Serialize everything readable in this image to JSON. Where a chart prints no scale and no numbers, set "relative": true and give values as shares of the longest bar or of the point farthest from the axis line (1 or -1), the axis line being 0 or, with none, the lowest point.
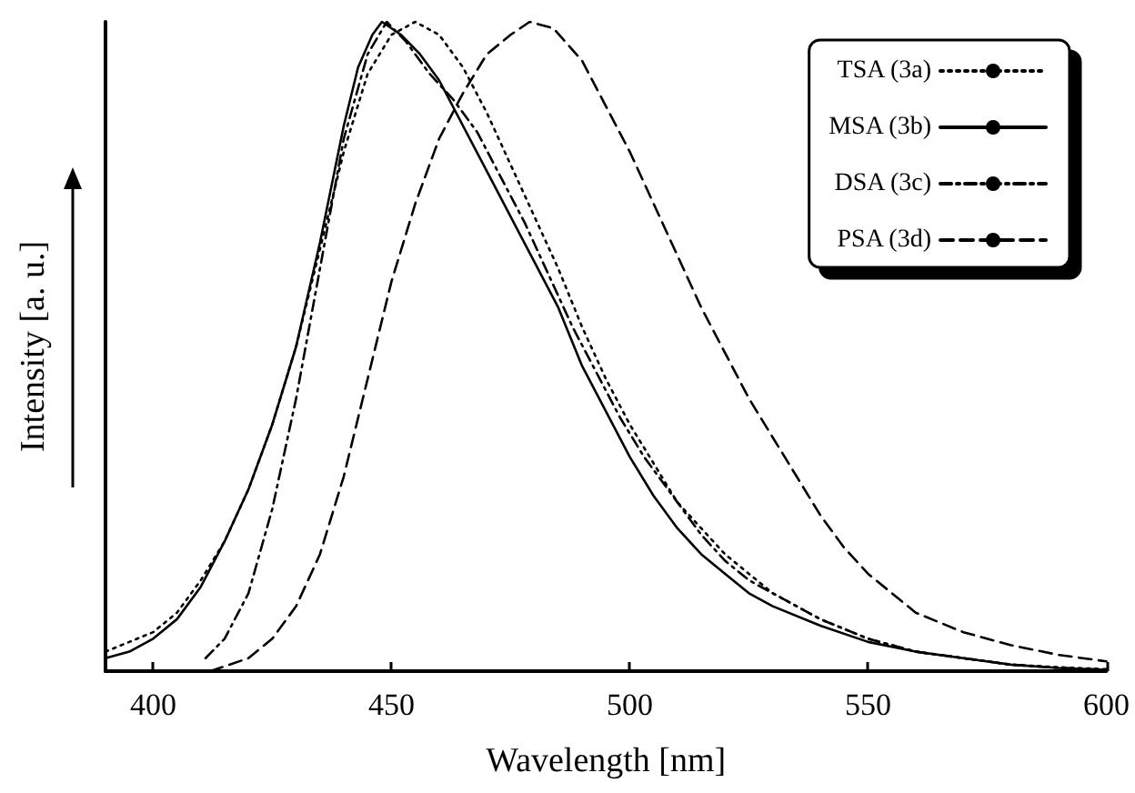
{
  "chart_data": {
    "type": "line",
    "xlabel": "Wavelength [nm]",
    "ylabel": "Intensity [a. u.]",
    "relative": true,
    "xlim": [
      390,
      600
    ],
    "xticks": [
      400,
      450,
      500,
      550,
      600
    ],
    "tick_labels": "x",
    "grid": false,
    "legend": "top right",
    "marker": "none",
    "series": [
      {
        "name": "TSA (3a)",
        "color": "#000000",
        "line_style": "dotted",
        "x": [
          390,
          395,
          400,
          405,
          410,
          415,
          420,
          425,
          430,
          435,
          440,
          445,
          450,
          455,
          460,
          465,
          470,
          475,
          480,
          485,
          490,
          495,
          500,
          505,
          510,
          515,
          520,
          525,
          530,
          540,
          550,
          560,
          570,
          580,
          590,
          600
        ],
        "values": [
          0.03,
          0.045,
          0.06,
          0.09,
          0.14,
          0.2,
          0.28,
          0.38,
          0.5,
          0.65,
          0.8,
          0.92,
          0.98,
          1.0,
          0.98,
          0.93,
          0.86,
          0.78,
          0.7,
          0.62,
          0.53,
          0.45,
          0.38,
          0.32,
          0.26,
          0.22,
          0.18,
          0.15,
          0.12,
          0.08,
          0.05,
          0.03,
          0.02,
          0.01,
          0.006,
          0.003
        ]
      },
      {
        "name": "MSA (3b)",
        "color": "#000000",
        "line_style": "solid",
        "x": [
          390,
          395,
          400,
          405,
          410,
          415,
          420,
          425,
          430,
          435,
          440,
          443,
          446,
          448,
          452,
          456,
          460,
          465,
          470,
          475,
          480,
          485,
          490,
          495,
          500,
          505,
          510,
          515,
          520,
          525,
          530,
          540,
          550,
          560,
          570,
          580,
          590,
          600
        ],
        "values": [
          0.02,
          0.03,
          0.05,
          0.08,
          0.13,
          0.2,
          0.28,
          0.38,
          0.5,
          0.66,
          0.84,
          0.93,
          0.98,
          1.0,
          0.98,
          0.95,
          0.91,
          0.84,
          0.77,
          0.7,
          0.63,
          0.56,
          0.47,
          0.4,
          0.33,
          0.27,
          0.22,
          0.18,
          0.15,
          0.12,
          0.1,
          0.07,
          0.045,
          0.03,
          0.02,
          0.01,
          0.005,
          0.002
        ]
      },
      {
        "name": "DSA (3c)",
        "color": "#000000",
        "line_style": "dashdot",
        "x": [
          411,
          415,
          420,
          425,
          430,
          435,
          440,
          445,
          449,
          453,
          458,
          463,
          468,
          473,
          478,
          483,
          488,
          493,
          498,
          503,
          510,
          515,
          520,
          525,
          530,
          540,
          550,
          560,
          570,
          580,
          590,
          600
        ],
        "values": [
          0.02,
          0.05,
          0.12,
          0.25,
          0.42,
          0.62,
          0.82,
          0.95,
          1.0,
          0.97,
          0.92,
          0.88,
          0.83,
          0.76,
          0.69,
          0.61,
          0.53,
          0.46,
          0.39,
          0.33,
          0.26,
          0.21,
          0.17,
          0.14,
          0.12,
          0.08,
          0.05,
          0.03,
          0.02,
          0.01,
          0.005,
          0.002
        ]
      },
      {
        "name": "PSA (3d)",
        "color": "#000000",
        "line_style": "dashed",
        "x": [
          412,
          420,
          425,
          430,
          435,
          440,
          445,
          450,
          455,
          460,
          465,
          470,
          475,
          479,
          484,
          490,
          495,
          500,
          505,
          510,
          515,
          520,
          525,
          530,
          535,
          540,
          545,
          550,
          555,
          560,
          570,
          580,
          590,
          600
        ],
        "values": [
          0.0,
          0.02,
          0.05,
          0.1,
          0.18,
          0.3,
          0.45,
          0.6,
          0.72,
          0.82,
          0.89,
          0.95,
          0.98,
          1.0,
          0.99,
          0.94,
          0.87,
          0.8,
          0.72,
          0.64,
          0.56,
          0.49,
          0.42,
          0.36,
          0.3,
          0.24,
          0.19,
          0.15,
          0.12,
          0.09,
          0.06,
          0.04,
          0.025,
          0.015
        ]
      }
    ]
  }
}
